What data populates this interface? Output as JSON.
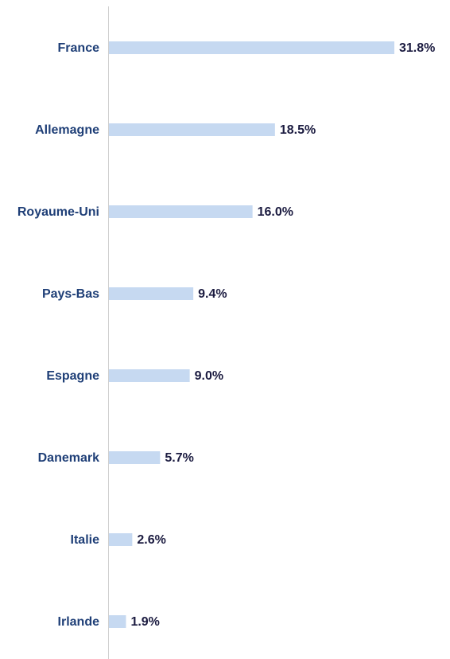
{
  "chart_data": {
    "type": "hbar",
    "categories": [
      "France",
      "Allemagne",
      "Royaume-Uni",
      "Pays-Bas",
      "Espagne",
      "Danemark",
      "Italie",
      "Irlande"
    ],
    "values": [
      31.8,
      18.5,
      16.0,
      9.4,
      9.0,
      5.7,
      2.6,
      1.9
    ],
    "value_labels": [
      "31.8%",
      "18.5%",
      "16.0%",
      "9.4%",
      "9.0%",
      "5.7%",
      "2.6%",
      "1.9%"
    ],
    "color": "#c6d9f1",
    "xlim": [
      0,
      38
    ]
  }
}
